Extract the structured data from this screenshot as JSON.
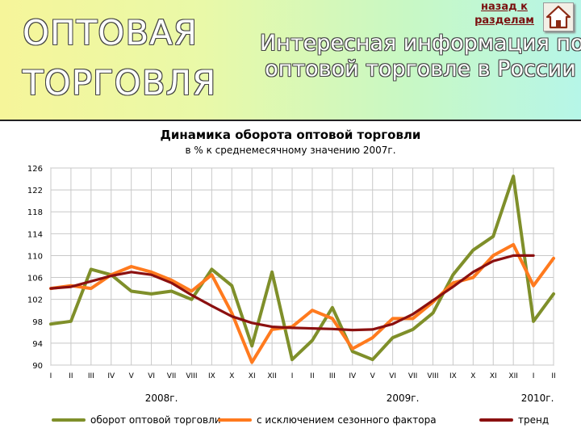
{
  "header": {
    "section_title_line1": "ОПТОВАЯ",
    "section_title_line2": "ТОРГОВЛЯ",
    "subtitle_line1": "Интересная информация по",
    "subtitle_line2": "оптовой торговле в России",
    "back_link": "назад к разделам",
    "home_icon": "home-icon"
  },
  "colors": {
    "turnover": "#7f8f2a",
    "seasonal": "#ff7a1e",
    "trend": "#8b1010",
    "grid": "#c8c8c8"
  },
  "chart_data": {
    "type": "line",
    "title": "Динамика оборота оптовой торговли",
    "subtitle": "в % к среднемесячному значению 2007г.",
    "ylim": [
      90,
      126
    ],
    "yticks": [
      90,
      94,
      98,
      102,
      106,
      110,
      114,
      118,
      122,
      126
    ],
    "categories": [
      "I",
      "II",
      "III",
      "IV",
      "V",
      "VI",
      "VII",
      "VIII",
      "IX",
      "X",
      "XI",
      "XII",
      "I",
      "II",
      "III",
      "IV",
      "V",
      "VI",
      "VII",
      "VIII",
      "IX",
      "X",
      "XI",
      "XII",
      "I",
      "II"
    ],
    "year_labels": [
      {
        "label": "2008г.",
        "at_index": 5.5
      },
      {
        "label": "2009г.",
        "at_index": 17.5
      },
      {
        "label": "2010г.",
        "at_index": 24.2
      }
    ],
    "grid": true,
    "legend_position": "bottom",
    "series": [
      {
        "name": "оборот оптовой торговли",
        "color_key": "turnover",
        "values": [
          97.5,
          98,
          107.5,
          106.5,
          103.5,
          103,
          103.5,
          102,
          107.5,
          104.5,
          93.5,
          107,
          91,
          94.5,
          100.5,
          92.5,
          91,
          95,
          96.5,
          99.5,
          106.5,
          111,
          113.5,
          124.5,
          98,
          103
        ]
      },
      {
        "name": "с исключением сезонного фактора",
        "color_key": "seasonal",
        "values": [
          104,
          104.5,
          104,
          106.5,
          108,
          107,
          105.5,
          103.5,
          106.5,
          99.5,
          90.5,
          96.5,
          97,
          100,
          98.5,
          93,
          95,
          98.5,
          98.5,
          101.5,
          105,
          106,
          110,
          112,
          104.5,
          109.5
        ]
      },
      {
        "name": "тренд",
        "color_key": "trend",
        "values": [
          104,
          104.3,
          105.3,
          106.3,
          107,
          106.5,
          105,
          102.8,
          100.8,
          98.9,
          97.7,
          97,
          96.8,
          96.7,
          96.6,
          96.4,
          96.5,
          97.5,
          99.3,
          101.8,
          104.3,
          107,
          109,
          110,
          110,
          null
        ]
      }
    ]
  }
}
